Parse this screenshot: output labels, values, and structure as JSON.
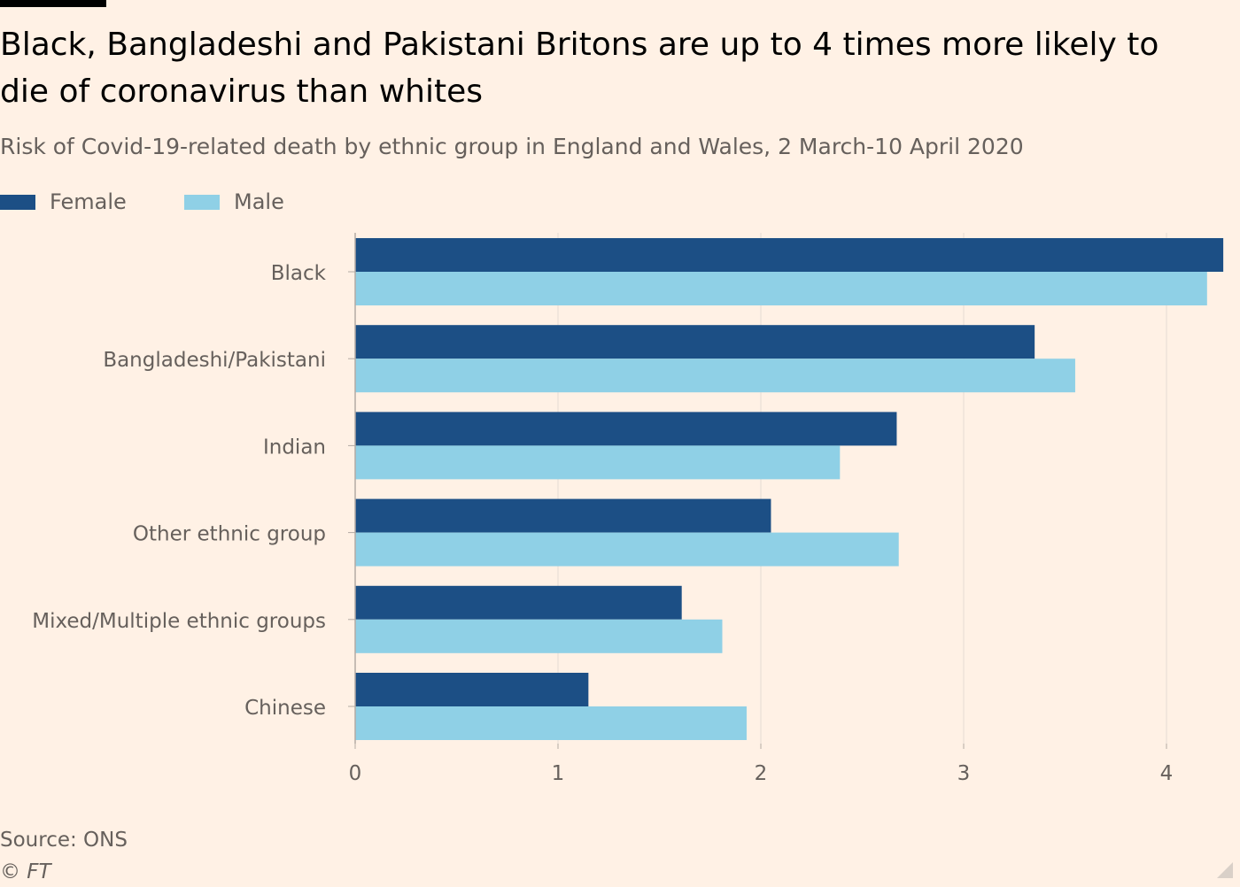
{
  "title": "Black, Bangladeshi and Pakistani Britons are up to 4 times more likely to die of coronavirus than whites",
  "subtitle": "Risk of Covid-19-related death by ethnic group in England and Wales, 2 March-10 April 2020",
  "source": "Source: ONS",
  "copyright": "© FT",
  "colors": {
    "female": "#1c4f85",
    "male": "#8fd0e6",
    "background": "#fff1e5"
  },
  "chart_data": {
    "type": "bar",
    "orientation": "horizontal",
    "categories": [
      "Black",
      "Bangladeshi/Pakistani",
      "Indian",
      "Other ethnic group",
      "Mixed/Multiple ethnic groups",
      "Chinese"
    ],
    "series": [
      {
        "name": "Female",
        "values": [
          4.28,
          3.35,
          2.67,
          2.05,
          1.61,
          1.15
        ]
      },
      {
        "name": "Male",
        "values": [
          4.2,
          3.55,
          2.39,
          2.68,
          1.81,
          1.93
        ]
      }
    ],
    "xlim": [
      0,
      4.3
    ],
    "xticks": [
      0,
      1,
      2,
      3,
      4
    ],
    "grid": true,
    "legend_position": "top-left"
  }
}
